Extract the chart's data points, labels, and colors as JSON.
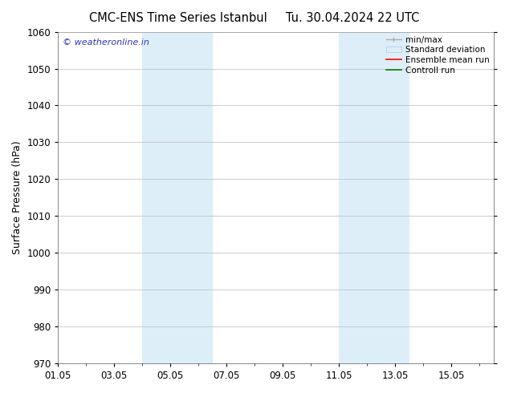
{
  "title_left": "CMC-ENS Time Series Istanbul",
  "title_right": "Tu. 30.04.2024 22 UTC",
  "ylabel": "Surface Pressure (hPa)",
  "ylim": [
    970,
    1060
  ],
  "yticks": [
    970,
    980,
    990,
    1000,
    1010,
    1020,
    1030,
    1040,
    1050,
    1060
  ],
  "xtick_labels": [
    "01.05",
    "03.05",
    "05.05",
    "07.05",
    "09.05",
    "11.05",
    "13.05",
    "15.05"
  ],
  "xtick_positions": [
    0,
    2,
    4,
    6,
    8,
    10,
    12,
    14
  ],
  "xlim": [
    0,
    15.5
  ],
  "shaded_bands": [
    {
      "x_start": 3.0,
      "x_end": 5.5,
      "color": "#ddeef9"
    },
    {
      "x_start": 10.0,
      "x_end": 12.5,
      "color": "#ddeef9"
    }
  ],
  "watermark_text": "© weatheronline.in",
  "watermark_color": "#3333cc",
  "bg_color": "#ffffff",
  "plot_bg_color": "#ffffff",
  "grid_color": "#bbbbbb",
  "tick_label_fontsize": 8.5,
  "title_fontsize": 10.5,
  "ylabel_fontsize": 9,
  "legend_fontsize": 7.5
}
